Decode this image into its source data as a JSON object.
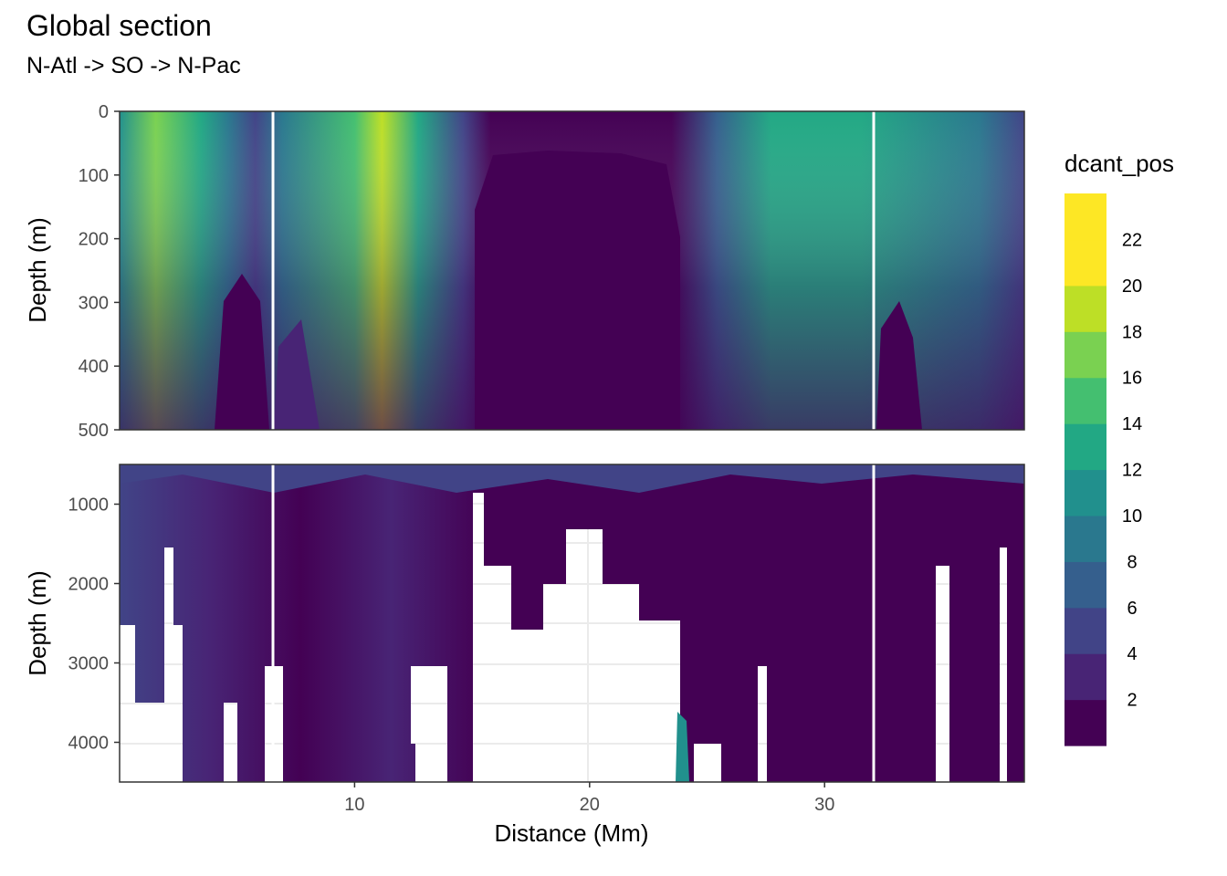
{
  "chart_data": {
    "type": "heatmap",
    "title": "Global section",
    "subtitle": "N-Atl -> SO -> N-Pac",
    "xlabel": "Distance (Mm)",
    "ylabel": "Depth (m)",
    "xlim": [
      0,
      38.5
    ],
    "x_ticks": [
      10,
      20,
      30
    ],
    "legend": {
      "title": "dcant_pos",
      "position": "right",
      "breaks": [
        2,
        4,
        6,
        8,
        10,
        12,
        14,
        16,
        18,
        20,
        22
      ],
      "colors": [
        "#440154",
        "#481a6c",
        "#472f7d",
        "#414487",
        "#39568c",
        "#31688e",
        "#2a788e",
        "#23888e",
        "#1f988b",
        "#22a884",
        "#35b779",
        "#54c568",
        "#7ad151",
        "#a5db36",
        "#d2e21b",
        "#fde725"
      ],
      "band_colors": [
        "#440154",
        "#482475",
        "#414487",
        "#355f8d",
        "#2a788e",
        "#21908d",
        "#22a884",
        "#44bf70",
        "#7ad151",
        "#bddf26",
        "#fde725"
      ]
    },
    "panels": [
      {
        "name": "upper",
        "ylim": [
          0,
          500
        ],
        "y_ticks": [
          0,
          100,
          200,
          300,
          400,
          500
        ],
        "reversed": true,
        "station_lines_x": [
          6.5,
          32.2
        ],
        "columns": [
          {
            "x": 1.4,
            "v": 18
          },
          {
            "x": 2.5,
            "v": 14
          },
          {
            "x": 4.0,
            "v": 10
          },
          {
            "x": 5.2,
            "v": 6
          },
          {
            "x": 7.5,
            "v": 12
          },
          {
            "x": 9.5,
            "v": 16
          },
          {
            "x": 11.2,
            "v": 22
          },
          {
            "x": 13.0,
            "v": 10
          },
          {
            "x": 14.8,
            "v": 6
          },
          {
            "x": 17,
            "v": 1
          },
          {
            "x": 20,
            "v": 1
          },
          {
            "x": 23,
            "v": 1
          },
          {
            "x": 25,
            "v": 4
          },
          {
            "x": 27,
            "v": 12
          },
          {
            "x": 30,
            "v": 15
          },
          {
            "x": 34,
            "v": 16
          },
          {
            "x": 37,
            "v": 12
          }
        ]
      },
      {
        "name": "lower",
        "ylim": [
          500,
          4500
        ],
        "y_ticks": [
          1000,
          2000,
          3000,
          4000
        ],
        "reversed": true,
        "station_lines_x": [
          6.5,
          32.2
        ],
        "columns": [
          {
            "x": 2,
            "v": 6
          },
          {
            "x": 5,
            "v": 4
          },
          {
            "x": 9,
            "v": 3
          },
          {
            "x": 13,
            "v": 2
          },
          {
            "x": 20,
            "v": 1
          },
          {
            "x": 24.5,
            "v": 10
          },
          {
            "x": 30,
            "v": 1
          },
          {
            "x": 36,
            "v": 1
          }
        ],
        "no_data_regions": [
          {
            "x": [
              0,
              2.7
            ],
            "y": [
              2500,
              4500
            ]
          },
          {
            "x": [
              15.2,
              24.0
            ],
            "y": [
              2000,
              4500
            ]
          },
          {
            "x": [
              10.0,
              13.0
            ],
            "y": [
              3500,
              4500
            ]
          }
        ]
      }
    ]
  }
}
